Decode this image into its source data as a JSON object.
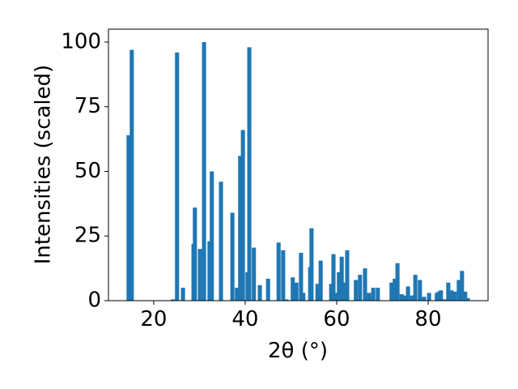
{
  "chart_data": {
    "type": "bar",
    "x_label": "2θ (°)",
    "y_label": "Intensities (scaled)",
    "x": [
      14.5,
      15.2,
      24.2,
      25.1,
      26.4,
      28.7,
      29.0,
      30.1,
      31.0,
      32.2,
      32.7,
      34.7,
      37.2,
      38.2,
      38.9,
      39.5,
      40.5,
      40.9,
      41.9,
      43.2,
      45.0,
      47.3,
      48.3,
      49.0,
      50.4,
      51.2,
      52.2,
      52.7,
      54.2,
      54.5,
      55.8,
      56.5,
      58.8,
      59.3,
      60.0,
      60.5,
      61.1,
      61.8,
      62.3,
      64.2,
      65.1,
      66.2,
      67.1,
      68.0,
      69.0,
      72.0,
      72.7,
      73.3,
      74.2,
      74.9,
      75.6,
      76.5,
      77.2,
      78.2,
      79.1,
      80.2,
      81.9,
      82.3,
      82.8,
      83.5,
      84.4,
      85.1,
      85.8,
      86.7,
      87.4,
      88.1,
      88.7
    ],
    "values": [
      64,
      97,
      0.5,
      96,
      5,
      22,
      36,
      20,
      100,
      23,
      50,
      46,
      34,
      5,
      56,
      66,
      11,
      98,
      20.5,
      6,
      8.5,
      22.5,
      19.5,
      0.5,
      9,
      7,
      18.5,
      3,
      13,
      28,
      6.5,
      15.5,
      6.5,
      18,
      3,
      11,
      17,
      7,
      19.5,
      8,
      10,
      12.5,
      3,
      5,
      5,
      7,
      8.5,
      14.5,
      2.5,
      2,
      5.5,
      2,
      10,
      8,
      1.5,
      3,
      3,
      3.5,
      4,
      0.5,
      7,
      4,
      3.5,
      8,
      11.5,
      3.5,
      1
    ],
    "bar_width": 0.9,
    "color": "#1f77b4",
    "xlim": [
      10.1,
      93.1
    ],
    "xticks": [
      20,
      40,
      60,
      80
    ],
    "ylim": [
      0,
      105
    ],
    "yticks": [
      0,
      25,
      50,
      75,
      100
    ]
  }
}
